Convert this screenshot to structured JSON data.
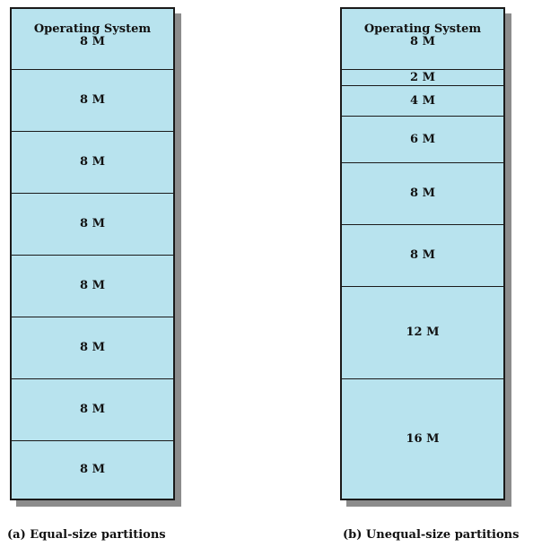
{
  "diagrams": [
    {
      "caption": "(a) Equal-size partitions",
      "partitions": [
        {
          "title": "Operating System",
          "size": "8 M"
        },
        {
          "title": "",
          "size": "8 M"
        },
        {
          "title": "",
          "size": "8 M"
        },
        {
          "title": "",
          "size": "8 M"
        },
        {
          "title": "",
          "size": "8 M"
        },
        {
          "title": "",
          "size": "8 M"
        },
        {
          "title": "",
          "size": "8 M"
        },
        {
          "title": "",
          "size": "8 M"
        }
      ]
    },
    {
      "caption": "(b) Unequal-size partitions",
      "partitions": [
        {
          "title": "Operating System",
          "size": "8 M"
        },
        {
          "title": "",
          "size": "2 M"
        },
        {
          "title": "",
          "size": "4 M"
        },
        {
          "title": "",
          "size": "6 M"
        },
        {
          "title": "",
          "size": "8 M"
        },
        {
          "title": "",
          "size": "8 M"
        },
        {
          "title": "",
          "size": "12 M"
        },
        {
          "title": "",
          "size": "16 M"
        }
      ]
    }
  ],
  "colors": {
    "partition_fill": "#b8e3ee",
    "border": "#1a1a1a",
    "shadow": "#8c8c8c"
  }
}
